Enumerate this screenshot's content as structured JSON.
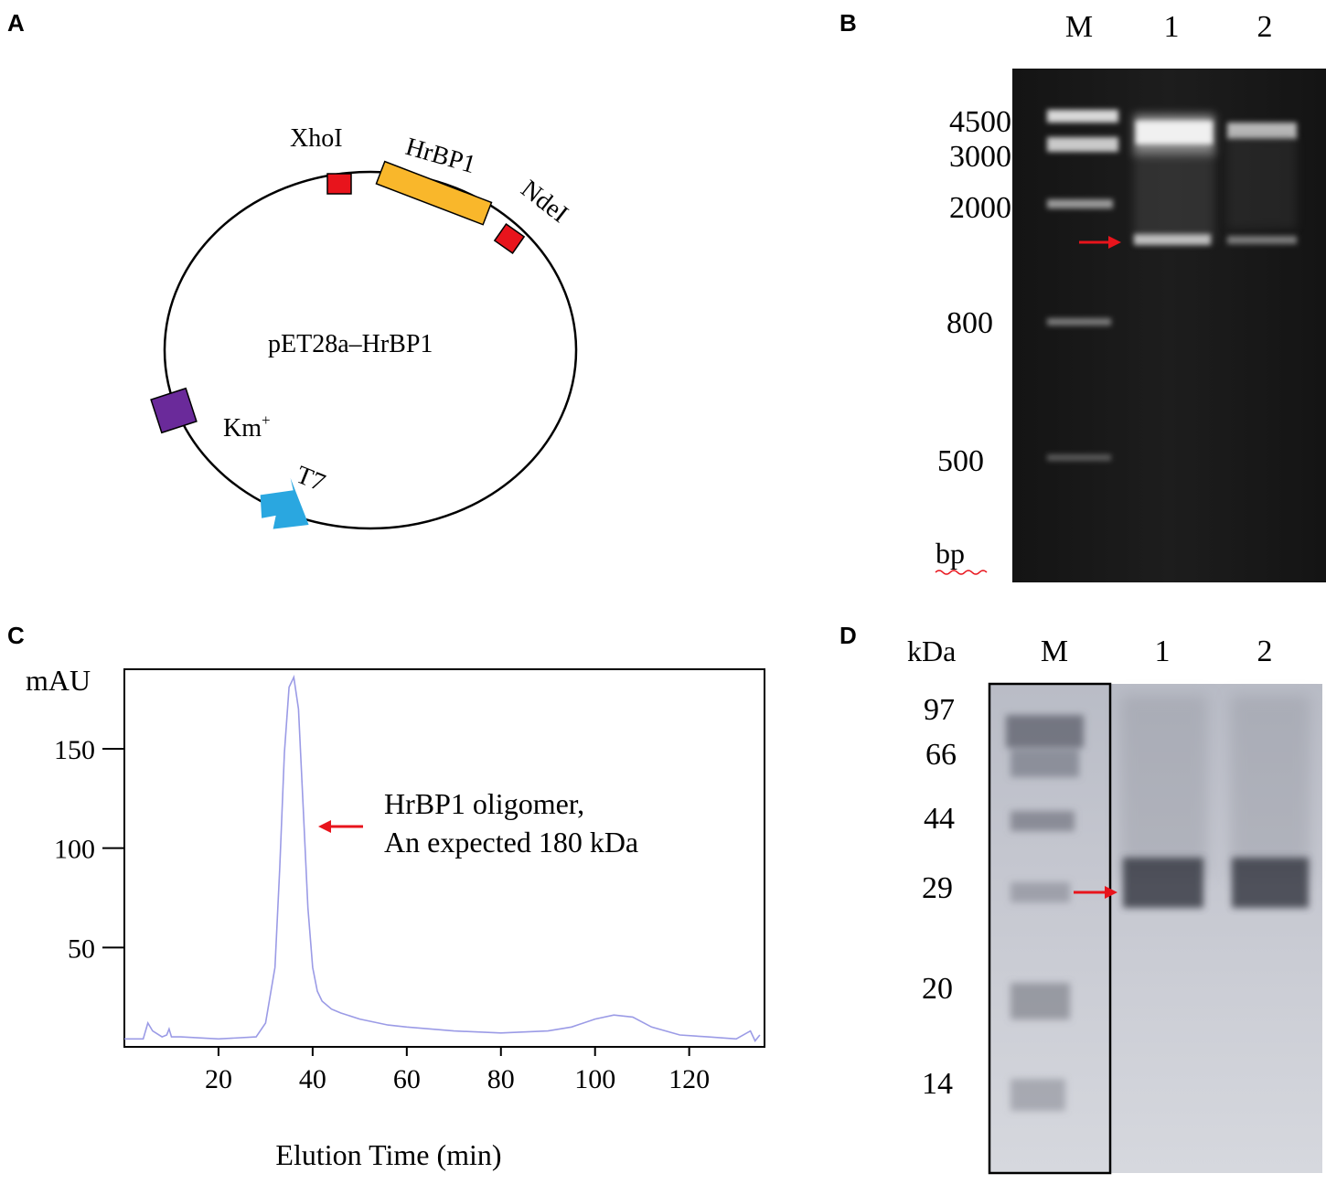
{
  "panels": {
    "a": {
      "letter": "A",
      "plasmid_name": "pET28a–HrBP1",
      "labels": {
        "xhoi": "XhoI",
        "gene": "HrBP1",
        "ndei": "NdeI",
        "km": "Km",
        "km_sup": "+",
        "t7": "T7"
      },
      "colors": {
        "site": "#e8141c",
        "gene": "#f9b72b",
        "km": "#6a2a9a",
        "t7": "#2aa7e0"
      }
    },
    "b": {
      "letter": "B",
      "lanes": [
        "M",
        "1",
        "2"
      ],
      "markers": [
        "4500",
        "3000",
        "2000",
        "800",
        "500"
      ],
      "unit": "bp"
    },
    "c": {
      "letter": "C",
      "annotation_line1": "HrBP1 oligomer,",
      "annotation_line2": "An expected 180 kDa"
    },
    "d": {
      "letter": "D",
      "unit": "kDa",
      "lanes": [
        "M",
        "1",
        "2"
      ],
      "markers": [
        "97",
        "66",
        "44",
        "29",
        "20",
        "14"
      ]
    }
  },
  "chart_data": {
    "type": "line",
    "title": "",
    "xlabel": "Elution Time (min)",
    "ylabel": "mAU",
    "xlim": [
      0,
      136
    ],
    "ylim": [
      0,
      190
    ],
    "xticks": [
      20,
      40,
      60,
      80,
      100,
      120
    ],
    "yticks": [
      50,
      100,
      150
    ],
    "line_color": "#9b9be6",
    "series": [
      {
        "x": [
          0,
          4,
          5,
          6,
          8,
          9,
          9.5,
          10,
          12,
          20,
          28,
          30,
          32,
          33,
          34,
          35,
          36,
          37,
          38,
          39,
          40,
          41,
          42,
          44,
          46,
          50,
          56,
          60,
          70,
          80,
          90,
          95,
          100,
          104,
          108,
          112,
          118,
          124,
          130,
          133,
          134,
          135
        ],
        "y": [
          4,
          4,
          12,
          8,
          5,
          6,
          9,
          5,
          5,
          4,
          5,
          12,
          40,
          90,
          148,
          181,
          186,
          170,
          120,
          70,
          40,
          28,
          23,
          19,
          17,
          14,
          11,
          10,
          8,
          7,
          8,
          10,
          14,
          16,
          15,
          10,
          6,
          5,
          4,
          8,
          3,
          6
        ]
      }
    ]
  }
}
